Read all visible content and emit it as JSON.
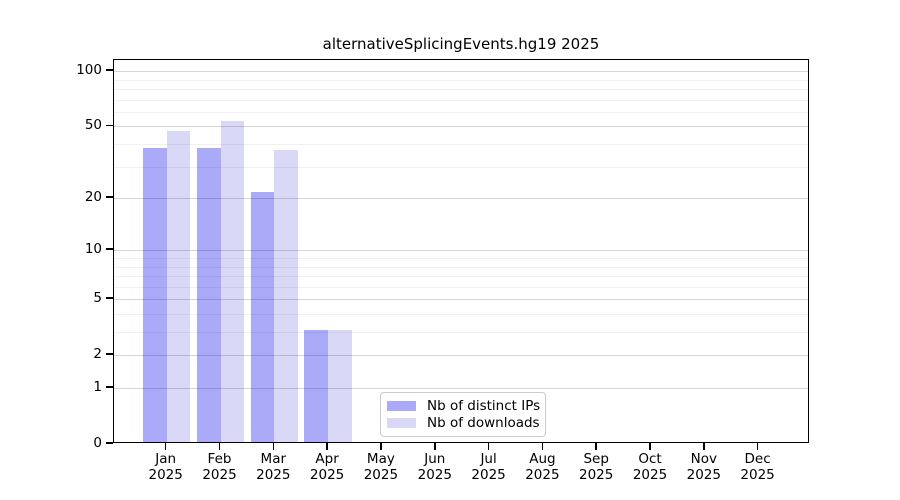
{
  "chart_data": {
    "type": "bar",
    "title": "alternativeSplicingEvents.hg19 2025",
    "categories": [
      "Jan",
      "Feb",
      "Mar",
      "Apr",
      "May",
      "Jun",
      "Jul",
      "Aug",
      "Sep",
      "Oct",
      "Nov",
      "Dec"
    ],
    "year_label": "2025",
    "series": [
      {
        "name": "Nb of distinct IPs",
        "color": "#aaaaf8",
        "values": [
          37,
          37,
          21,
          3,
          0,
          0,
          0,
          0,
          0,
          0,
          0,
          0
        ]
      },
      {
        "name": "Nb of downloads",
        "color": "#d9d9f7",
        "values": [
          46,
          52,
          36,
          3,
          0,
          0,
          0,
          0,
          0,
          0,
          0,
          0
        ]
      }
    ],
    "yaxis": {
      "tick_labels": [
        "100",
        "50",
        "20",
        "10",
        "5",
        "2",
        "1",
        "0"
      ],
      "ticks": [
        100,
        50,
        20,
        10,
        5,
        2,
        1,
        0
      ],
      "minor_ticks": [
        3,
        4,
        6,
        7,
        8,
        9,
        30,
        40,
        60,
        70,
        80,
        90
      ],
      "scale": "log10(1+v)",
      "ylim": [
        0,
        115
      ]
    },
    "grid": true,
    "legend_position": "lower center",
    "colors": {
      "distinct_ips_bar": "#aaaaf8",
      "downloads_bar": "#d9d9f7",
      "major_grid": "#d6d6d6",
      "minor_grid": "#f0f0f0",
      "axis": "#000000",
      "legend_border": "#cccccc"
    }
  }
}
